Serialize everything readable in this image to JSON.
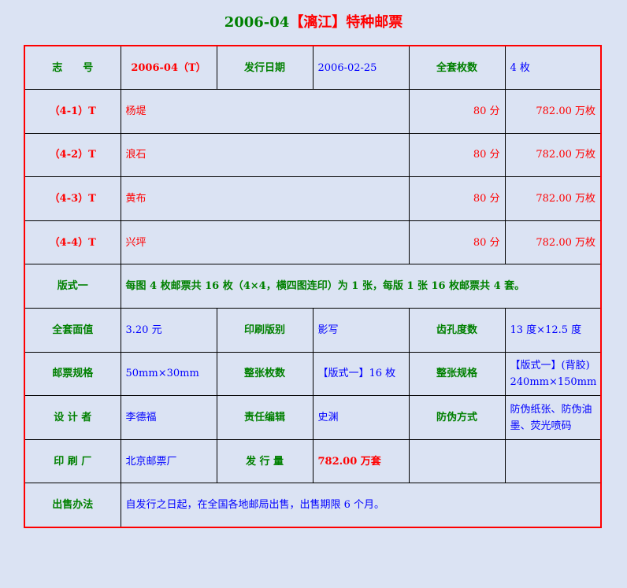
{
  "title": {
    "code": "2006-04",
    "name": "【漓江】特种邮票"
  },
  "header": {
    "id_label": "志　　号",
    "id_value": "2006-04（T）",
    "date_label": "发行日期",
    "date_value": "2006-02-25",
    "count_label": "全套枚数",
    "count_value": "4 枚"
  },
  "stamps": [
    {
      "no": "（4-1）T",
      "name": "杨堤",
      "face": "80 分",
      "qty": "782.00 万枚"
    },
    {
      "no": "（4-2）T",
      "name": "浪石",
      "face": "80 分",
      "qty": "782.00 万枚"
    },
    {
      "no": "（4-3）T",
      "name": "黄布",
      "face": "80 分",
      "qty": "782.00 万枚"
    },
    {
      "no": "（4-4）T",
      "name": "兴坪",
      "face": "80 分",
      "qty": "782.00 万枚"
    }
  ],
  "format": {
    "label": "版式一",
    "value": "每图 4 枚邮票共 16 枚（4×4，横四图连印）为 1 张，每版 1 张 16 枚邮票共 4 套。"
  },
  "rows": {
    "face_label": "全套面值",
    "face_value": "3.20 元",
    "print_label": "印刷版别",
    "print_value": "影写",
    "perf_label": "齿孔度数",
    "perf_value": "13 度×12.5 度",
    "size_label": "邮票规格",
    "size_value": "50mm×30mm",
    "sheet_count_label": "整张枚数",
    "sheet_count_value": "【版式一】16 枚",
    "sheet_size_label": "整张规格",
    "sheet_size_value1": "【版式一】(背胶)",
    "sheet_size_value2": "240mm×150mm",
    "designer_label": "设 计 者",
    "designer_value": "李德福",
    "editor_label": "责任编辑",
    "editor_value": "史渊",
    "security_label": "防伪方式",
    "security_value": "防伪纸张、防伪油墨、荧光喷码",
    "printer_label": "印 刷 厂",
    "printer_value": "北京邮票厂",
    "issue_label": "发 行 量",
    "issue_value": "782.00 万套",
    "sale_label": "出售办法",
    "sale_value": "自发行之日起，在全国各地邮局出售，出售期限 6 个月。"
  }
}
